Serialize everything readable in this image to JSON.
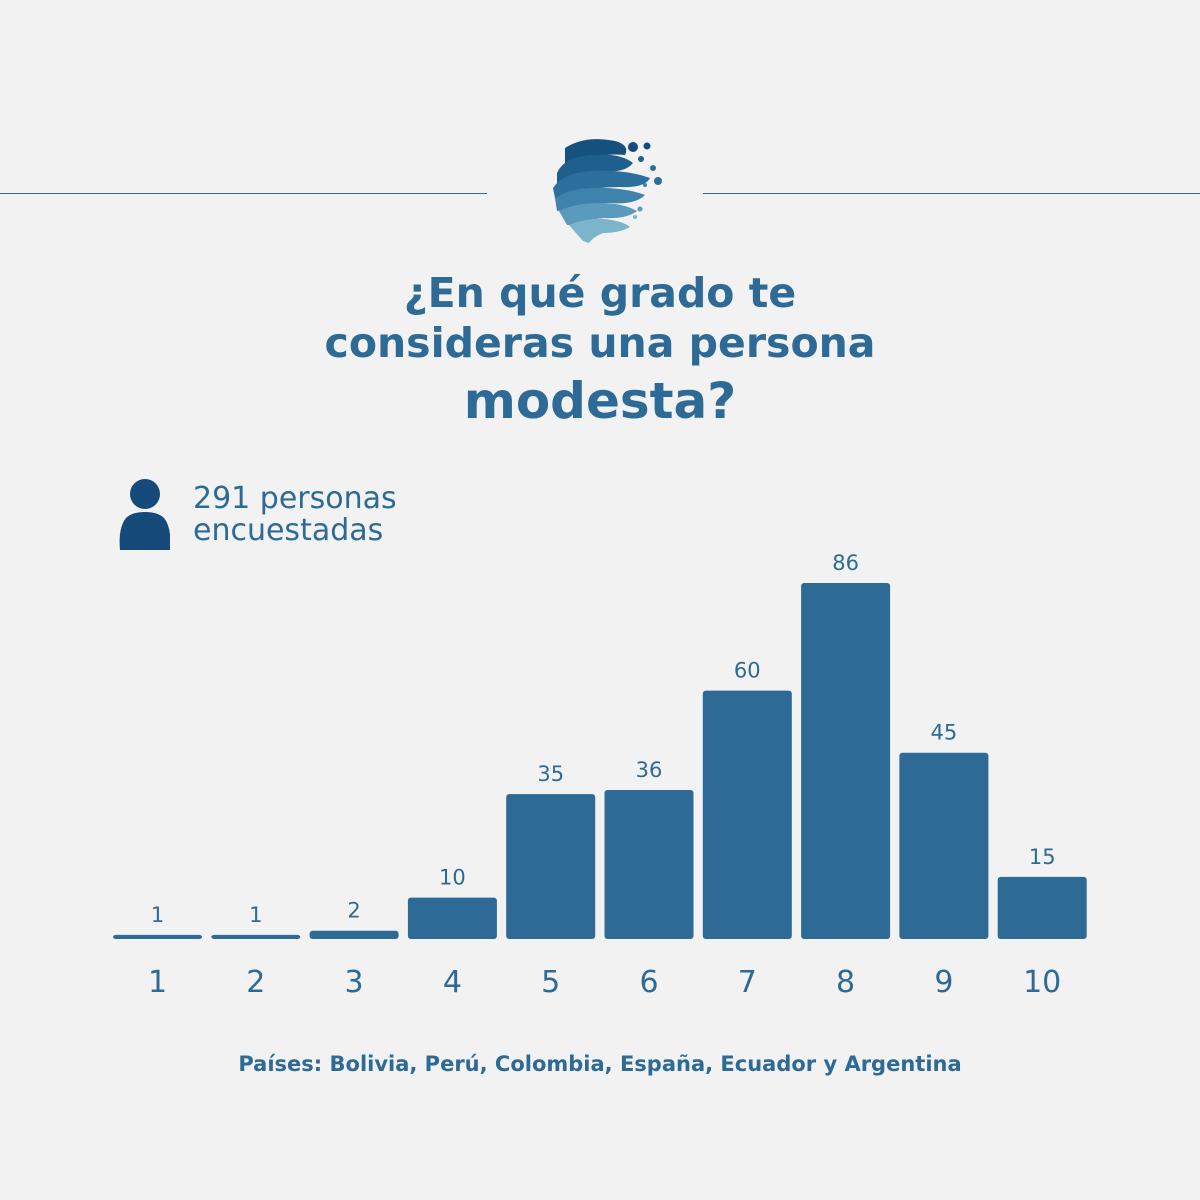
{
  "header": {
    "title_line1": "¿En qué grado te",
    "title_line2": "consideras una persona",
    "title_line3": "modesta?"
  },
  "respondents": {
    "line1": "291 personas",
    "line2": "encuestadas",
    "icon": "person-icon"
  },
  "colors": {
    "bar": "#2d6a96",
    "text": "#2d6a96",
    "icon": "#154a7a",
    "background": "#f2f2f2"
  },
  "chart_data": {
    "type": "bar",
    "categories": [
      "1",
      "2",
      "3",
      "4",
      "5",
      "6",
      "7",
      "8",
      "9",
      "10"
    ],
    "values": [
      1,
      1,
      2,
      10,
      35,
      36,
      60,
      86,
      45,
      15
    ],
    "title": "¿En qué grado te consideras una persona modesta?",
    "xlabel": "",
    "ylabel": "",
    "ylim": [
      0,
      86
    ],
    "grid": false,
    "data_labels": true
  },
  "footer": {
    "countries": "Países: Bolivia, Perú, Colombia, España, Ecuador y Argentina"
  }
}
